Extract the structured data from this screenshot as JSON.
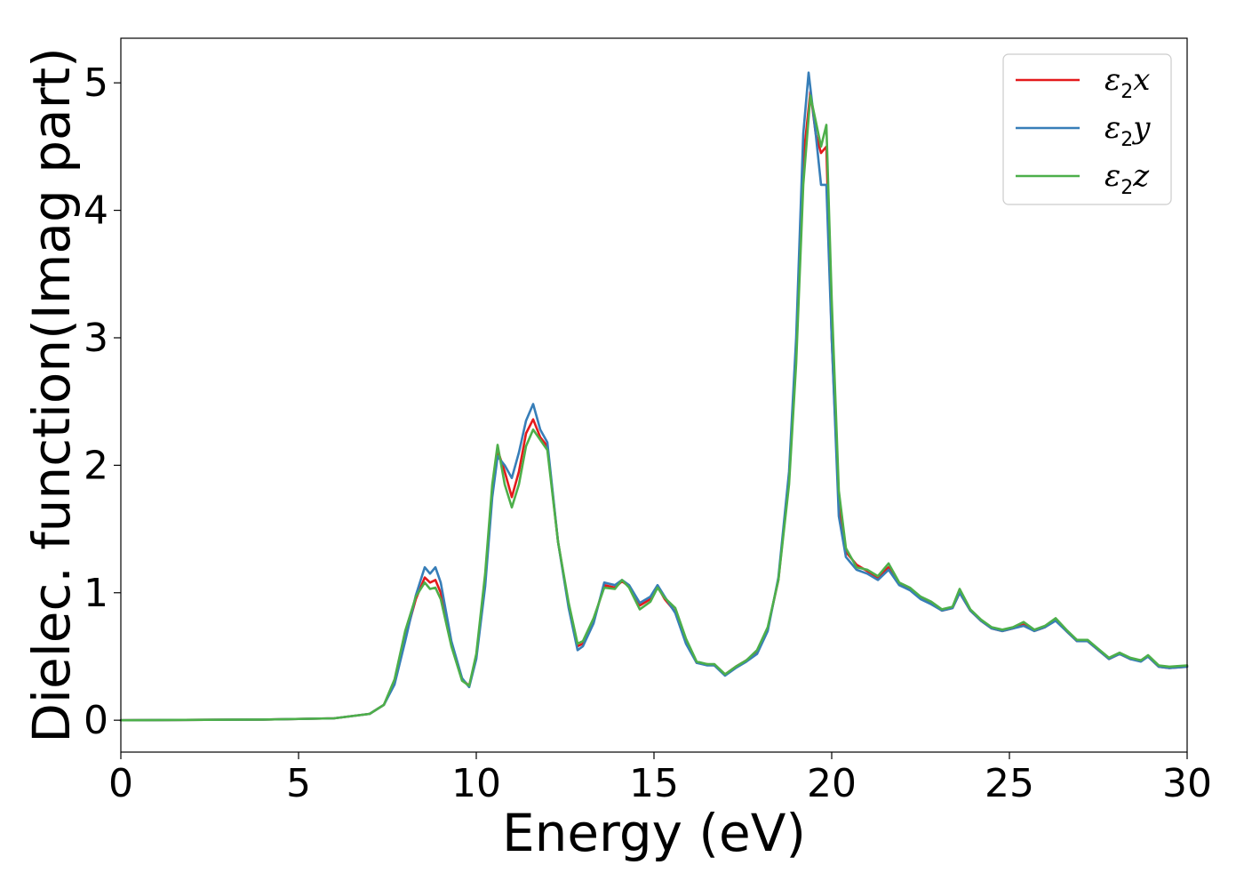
{
  "chart_data": {
    "type": "line",
    "title": "",
    "xlabel": "Energy (eV)",
    "ylabel": "Dielec. function(Imag part)",
    "xlim": [
      0,
      30
    ],
    "ylim": [
      -0.25,
      5.35
    ],
    "xticks": [
      0,
      5,
      10,
      15,
      20,
      25,
      30
    ],
    "xtick_labels": [
      "0",
      "5",
      "10",
      "15",
      "20",
      "25",
      "30"
    ],
    "yticks": [
      0,
      1,
      2,
      3,
      4,
      5
    ],
    "ytick_labels": [
      "0",
      "1",
      "2",
      "3",
      "4",
      "5"
    ],
    "grid": false,
    "legend_position": "top-right",
    "series": [
      {
        "name": "ε2x",
        "name_base": "ε",
        "name_sub": "2",
        "name_suffix": "x",
        "color": "#e41a1c",
        "points": [
          [
            0,
            0
          ],
          [
            4,
            0.005
          ],
          [
            6,
            0.015
          ],
          [
            7,
            0.05
          ],
          [
            7.4,
            0.12
          ],
          [
            7.7,
            0.3
          ],
          [
            8.0,
            0.65
          ],
          [
            8.3,
            0.95
          ],
          [
            8.55,
            1.12
          ],
          [
            8.7,
            1.08
          ],
          [
            8.85,
            1.1
          ],
          [
            9.0,
            1.0
          ],
          [
            9.3,
            0.6
          ],
          [
            9.6,
            0.32
          ],
          [
            9.8,
            0.27
          ],
          [
            10.0,
            0.5
          ],
          [
            10.25,
            1.1
          ],
          [
            10.45,
            1.8
          ],
          [
            10.6,
            2.12
          ],
          [
            10.8,
            1.95
          ],
          [
            11.0,
            1.75
          ],
          [
            11.2,
            1.95
          ],
          [
            11.4,
            2.25
          ],
          [
            11.6,
            2.36
          ],
          [
            11.8,
            2.22
          ],
          [
            12.0,
            2.15
          ],
          [
            12.3,
            1.4
          ],
          [
            12.6,
            0.9
          ],
          [
            12.85,
            0.58
          ],
          [
            13.0,
            0.6
          ],
          [
            13.3,
            0.78
          ],
          [
            13.6,
            1.06
          ],
          [
            13.9,
            1.04
          ],
          [
            14.1,
            1.09
          ],
          [
            14.3,
            1.05
          ],
          [
            14.6,
            0.9
          ],
          [
            14.9,
            0.95
          ],
          [
            15.1,
            1.05
          ],
          [
            15.3,
            0.95
          ],
          [
            15.6,
            0.85
          ],
          [
            15.9,
            0.62
          ],
          [
            16.2,
            0.45
          ],
          [
            16.5,
            0.44
          ],
          [
            16.7,
            0.43
          ],
          [
            17.0,
            0.36
          ],
          [
            17.3,
            0.42
          ],
          [
            17.6,
            0.47
          ],
          [
            17.9,
            0.54
          ],
          [
            18.2,
            0.72
          ],
          [
            18.5,
            1.1
          ],
          [
            18.8,
            1.9
          ],
          [
            19.0,
            2.9
          ],
          [
            19.2,
            4.4
          ],
          [
            19.4,
            4.93
          ],
          [
            19.55,
            4.6
          ],
          [
            19.7,
            4.45
          ],
          [
            19.85,
            4.5
          ],
          [
            20.0,
            3.0
          ],
          [
            20.2,
            1.7
          ],
          [
            20.4,
            1.32
          ],
          [
            20.7,
            1.22
          ],
          [
            21.0,
            1.17
          ],
          [
            21.3,
            1.12
          ],
          [
            21.6,
            1.2
          ],
          [
            21.9,
            1.07
          ],
          [
            22.2,
            1.03
          ],
          [
            22.5,
            0.96
          ],
          [
            22.8,
            0.92
          ],
          [
            23.1,
            0.86
          ],
          [
            23.4,
            0.88
          ],
          [
            23.6,
            1.0
          ],
          [
            23.9,
            0.86
          ],
          [
            24.2,
            0.78
          ],
          [
            24.5,
            0.72
          ],
          [
            24.8,
            0.7
          ],
          [
            25.1,
            0.72
          ],
          [
            25.4,
            0.75
          ],
          [
            25.7,
            0.7
          ],
          [
            26.0,
            0.73
          ],
          [
            26.3,
            0.79
          ],
          [
            26.6,
            0.7
          ],
          [
            26.9,
            0.62
          ],
          [
            27.2,
            0.62
          ],
          [
            27.5,
            0.55
          ],
          [
            27.8,
            0.48
          ],
          [
            28.1,
            0.52
          ],
          [
            28.4,
            0.48
          ],
          [
            28.7,
            0.47
          ],
          [
            28.9,
            0.5
          ],
          [
            29.2,
            0.42
          ],
          [
            29.5,
            0.41
          ],
          [
            30.0,
            0.42
          ]
        ]
      },
      {
        "name": "ε2y",
        "name_base": "ε",
        "name_sub": "2",
        "name_suffix": "y",
        "color": "#377eb8",
        "points": [
          [
            0,
            0
          ],
          [
            4,
            0.005
          ],
          [
            6,
            0.015
          ],
          [
            7,
            0.05
          ],
          [
            7.4,
            0.12
          ],
          [
            7.7,
            0.28
          ],
          [
            8.0,
            0.62
          ],
          [
            8.3,
            0.98
          ],
          [
            8.55,
            1.2
          ],
          [
            8.7,
            1.15
          ],
          [
            8.85,
            1.2
          ],
          [
            9.0,
            1.08
          ],
          [
            9.3,
            0.62
          ],
          [
            9.6,
            0.33
          ],
          [
            9.8,
            0.26
          ],
          [
            10.0,
            0.48
          ],
          [
            10.25,
            1.05
          ],
          [
            10.45,
            1.75
          ],
          [
            10.6,
            2.07
          ],
          [
            10.8,
            2.0
          ],
          [
            11.0,
            1.9
          ],
          [
            11.2,
            2.1
          ],
          [
            11.4,
            2.35
          ],
          [
            11.6,
            2.48
          ],
          [
            11.8,
            2.28
          ],
          [
            12.0,
            2.18
          ],
          [
            12.3,
            1.4
          ],
          [
            12.6,
            0.88
          ],
          [
            12.85,
            0.55
          ],
          [
            13.0,
            0.58
          ],
          [
            13.3,
            0.76
          ],
          [
            13.6,
            1.08
          ],
          [
            13.9,
            1.06
          ],
          [
            14.1,
            1.1
          ],
          [
            14.3,
            1.06
          ],
          [
            14.6,
            0.92
          ],
          [
            14.9,
            0.97
          ],
          [
            15.1,
            1.06
          ],
          [
            15.3,
            0.97
          ],
          [
            15.6,
            0.84
          ],
          [
            15.9,
            0.6
          ],
          [
            16.2,
            0.45
          ],
          [
            16.5,
            0.43
          ],
          [
            16.7,
            0.43
          ],
          [
            17.0,
            0.35
          ],
          [
            17.3,
            0.41
          ],
          [
            17.6,
            0.46
          ],
          [
            17.9,
            0.52
          ],
          [
            18.2,
            0.7
          ],
          [
            18.5,
            1.12
          ],
          [
            18.8,
            1.95
          ],
          [
            19.0,
            3.0
          ],
          [
            19.2,
            4.6
          ],
          [
            19.35,
            5.08
          ],
          [
            19.55,
            4.6
          ],
          [
            19.7,
            4.2
          ],
          [
            19.85,
            4.2
          ],
          [
            20.0,
            3.0
          ],
          [
            20.2,
            1.6
          ],
          [
            20.4,
            1.28
          ],
          [
            20.7,
            1.18
          ],
          [
            21.0,
            1.15
          ],
          [
            21.3,
            1.1
          ],
          [
            21.6,
            1.18
          ],
          [
            21.9,
            1.06
          ],
          [
            22.2,
            1.02
          ],
          [
            22.5,
            0.95
          ],
          [
            22.8,
            0.91
          ],
          [
            23.1,
            0.86
          ],
          [
            23.4,
            0.88
          ],
          [
            23.6,
            1.0
          ],
          [
            23.9,
            0.86
          ],
          [
            24.2,
            0.78
          ],
          [
            24.5,
            0.72
          ],
          [
            24.8,
            0.7
          ],
          [
            25.1,
            0.72
          ],
          [
            25.4,
            0.74
          ],
          [
            25.7,
            0.7
          ],
          [
            26.0,
            0.73
          ],
          [
            26.3,
            0.78
          ],
          [
            26.6,
            0.7
          ],
          [
            26.9,
            0.62
          ],
          [
            27.2,
            0.62
          ],
          [
            27.5,
            0.55
          ],
          [
            27.8,
            0.48
          ],
          [
            28.1,
            0.52
          ],
          [
            28.4,
            0.48
          ],
          [
            28.7,
            0.46
          ],
          [
            28.9,
            0.5
          ],
          [
            29.2,
            0.42
          ],
          [
            29.5,
            0.41
          ],
          [
            30.0,
            0.42
          ]
        ]
      },
      {
        "name": "ε2z",
        "name_base": "ε",
        "name_sub": "2",
        "name_suffix": "z",
        "color": "#4daf4a",
        "points": [
          [
            0,
            0
          ],
          [
            4,
            0.005
          ],
          [
            6,
            0.015
          ],
          [
            7,
            0.05
          ],
          [
            7.4,
            0.12
          ],
          [
            7.7,
            0.32
          ],
          [
            8.0,
            0.7
          ],
          [
            8.3,
            0.97
          ],
          [
            8.55,
            1.08
          ],
          [
            8.7,
            1.03
          ],
          [
            8.85,
            1.04
          ],
          [
            9.0,
            0.95
          ],
          [
            9.3,
            0.58
          ],
          [
            9.6,
            0.31
          ],
          [
            9.8,
            0.27
          ],
          [
            10.0,
            0.52
          ],
          [
            10.25,
            1.15
          ],
          [
            10.45,
            1.85
          ],
          [
            10.6,
            2.16
          ],
          [
            10.8,
            1.85
          ],
          [
            11.0,
            1.67
          ],
          [
            11.2,
            1.85
          ],
          [
            11.4,
            2.15
          ],
          [
            11.6,
            2.28
          ],
          [
            11.8,
            2.2
          ],
          [
            12.0,
            2.12
          ],
          [
            12.3,
            1.4
          ],
          [
            12.6,
            0.92
          ],
          [
            12.85,
            0.6
          ],
          [
            13.0,
            0.62
          ],
          [
            13.3,
            0.8
          ],
          [
            13.6,
            1.04
          ],
          [
            13.9,
            1.03
          ],
          [
            14.1,
            1.1
          ],
          [
            14.3,
            1.04
          ],
          [
            14.6,
            0.87
          ],
          [
            14.9,
            0.93
          ],
          [
            15.1,
            1.04
          ],
          [
            15.3,
            0.96
          ],
          [
            15.6,
            0.88
          ],
          [
            15.9,
            0.64
          ],
          [
            16.2,
            0.46
          ],
          [
            16.5,
            0.44
          ],
          [
            16.7,
            0.44
          ],
          [
            17.0,
            0.36
          ],
          [
            17.3,
            0.42
          ],
          [
            17.6,
            0.47
          ],
          [
            17.9,
            0.55
          ],
          [
            18.2,
            0.73
          ],
          [
            18.5,
            1.1
          ],
          [
            18.8,
            1.85
          ],
          [
            19.0,
            2.8
          ],
          [
            19.2,
            4.2
          ],
          [
            19.4,
            4.9
          ],
          [
            19.55,
            4.7
          ],
          [
            19.7,
            4.5
          ],
          [
            19.85,
            4.67
          ],
          [
            20.0,
            3.3
          ],
          [
            20.2,
            1.8
          ],
          [
            20.4,
            1.35
          ],
          [
            20.7,
            1.2
          ],
          [
            21.0,
            1.18
          ],
          [
            21.3,
            1.13
          ],
          [
            21.6,
            1.23
          ],
          [
            21.9,
            1.08
          ],
          [
            22.2,
            1.04
          ],
          [
            22.5,
            0.97
          ],
          [
            22.8,
            0.93
          ],
          [
            23.1,
            0.87
          ],
          [
            23.4,
            0.89
          ],
          [
            23.6,
            1.03
          ],
          [
            23.9,
            0.87
          ],
          [
            24.2,
            0.79
          ],
          [
            24.5,
            0.73
          ],
          [
            24.8,
            0.71
          ],
          [
            25.1,
            0.73
          ],
          [
            25.4,
            0.77
          ],
          [
            25.7,
            0.71
          ],
          [
            26.0,
            0.74
          ],
          [
            26.3,
            0.8
          ],
          [
            26.6,
            0.71
          ],
          [
            26.9,
            0.63
          ],
          [
            27.2,
            0.63
          ],
          [
            27.5,
            0.56
          ],
          [
            27.8,
            0.49
          ],
          [
            28.1,
            0.53
          ],
          [
            28.4,
            0.49
          ],
          [
            28.7,
            0.47
          ],
          [
            28.9,
            0.51
          ],
          [
            29.2,
            0.43
          ],
          [
            29.5,
            0.42
          ],
          [
            30.0,
            0.43
          ]
        ]
      }
    ]
  }
}
